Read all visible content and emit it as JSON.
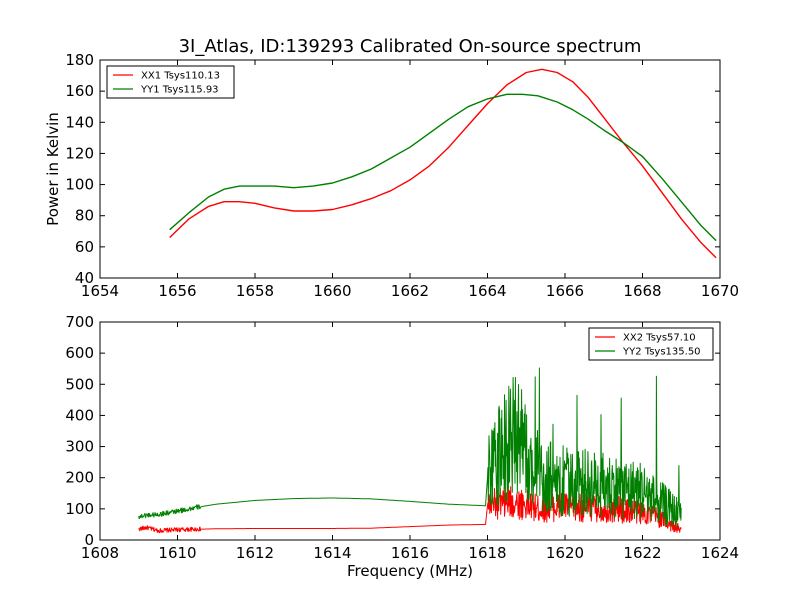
{
  "figure_title": "3I_Atlas, ID:139293 Calibrated On-source spectrum",
  "colors": {
    "red": "#ff0000",
    "green": "#008000"
  },
  "chart_data": [
    {
      "type": "line",
      "panel": "top",
      "title": "3I_Atlas, ID:139293 Calibrated On-source spectrum",
      "xlabel": "",
      "ylabel": "Power in Kelvin",
      "xlim": [
        1654,
        1670
      ],
      "ylim": [
        40,
        180
      ],
      "xticks": [
        1654,
        1656,
        1658,
        1660,
        1662,
        1664,
        1666,
        1668,
        1670
      ],
      "yticks": [
        40,
        60,
        80,
        100,
        120,
        140,
        160,
        180
      ],
      "legend_position": "top-left",
      "series": [
        {
          "name": "XX1 Tsys110.13",
          "color": "#ff0000",
          "x": [
            1655.8,
            1656.3,
            1656.8,
            1657.2,
            1657.6,
            1658.0,
            1658.5,
            1659.0,
            1659.5,
            1660.0,
            1660.5,
            1661.0,
            1661.5,
            1662.0,
            1662.5,
            1663.0,
            1663.5,
            1664.0,
            1664.5,
            1665.0,
            1665.4,
            1665.8,
            1666.2,
            1666.6,
            1667.0,
            1667.5,
            1668.0,
            1668.5,
            1669.0,
            1669.5,
            1669.9
          ],
          "y": [
            66,
            78,
            86,
            89,
            89,
            88,
            85,
            83,
            83,
            84,
            87,
            91,
            96,
            103,
            112,
            124,
            138,
            152,
            164,
            172,
            174,
            172,
            166,
            156,
            143,
            127,
            112,
            95,
            78,
            63,
            53
          ]
        },
        {
          "name": "YY1 Tsys115.93",
          "color": "#008000",
          "x": [
            1655.8,
            1656.3,
            1656.8,
            1657.2,
            1657.6,
            1658.0,
            1658.5,
            1659.0,
            1659.5,
            1660.0,
            1660.5,
            1661.0,
            1661.5,
            1662.0,
            1662.5,
            1663.0,
            1663.5,
            1664.0,
            1664.5,
            1664.9,
            1665.3,
            1665.8,
            1666.2,
            1666.6,
            1667.0,
            1667.5,
            1668.0,
            1668.5,
            1669.0,
            1669.5,
            1669.9
          ],
          "y": [
            71,
            82,
            92,
            97,
            99,
            99,
            99,
            98,
            99,
            101,
            105,
            110,
            117,
            124,
            133,
            142,
            150,
            155,
            158,
            158,
            157,
            153,
            148,
            142,
            135,
            127,
            118,
            104,
            89,
            74,
            64
          ]
        }
      ]
    },
    {
      "type": "line",
      "panel": "bottom",
      "title": "",
      "xlabel": "Frequency (MHz)",
      "ylabel": "",
      "xlim": [
        1608,
        1624
      ],
      "ylim": [
        0,
        700
      ],
      "xticks": [
        1608,
        1610,
        1612,
        1614,
        1616,
        1618,
        1620,
        1622,
        1624
      ],
      "yticks": [
        0,
        100,
        200,
        300,
        400,
        500,
        600,
        700
      ],
      "legend_position": "top-right",
      "series": [
        {
          "name": "XX2 Tsys57.10",
          "color": "#ff0000",
          "x": [
            1609.0,
            1609.2,
            1609.5,
            1610.0,
            1611.0,
            1612.0,
            1613.0,
            1614.0,
            1615.0,
            1616.0,
            1617.0,
            1617.95,
            1618.0,
            1618.2,
            1618.5,
            1618.8,
            1619.0,
            1619.3,
            1619.6,
            1620.0,
            1620.4,
            1620.8,
            1621.2,
            1621.6,
            1622.0,
            1622.3,
            1622.6,
            1623.0
          ],
          "y": [
            35,
            40,
            30,
            33,
            36,
            37,
            37,
            37,
            38,
            43,
            48,
            50,
            110,
            115,
            118,
            120,
            112,
            100,
            105,
            108,
            104,
            102,
            100,
            95,
            90,
            80,
            60,
            30
          ]
        },
        {
          "name": "YY2 Tsys135.50",
          "color": "#008000",
          "x": [
            1609.0,
            1609.2,
            1609.5,
            1610.0,
            1610.5,
            1611.0,
            1612.0,
            1613.0,
            1614.0,
            1615.0,
            1616.0,
            1617.0,
            1617.95,
            1618.0,
            1618.2,
            1618.5,
            1618.8,
            1619.0,
            1619.3,
            1619.6,
            1620.0,
            1620.4,
            1620.8,
            1621.2,
            1621.6,
            1622.0,
            1622.3,
            1622.6,
            1623.0
          ],
          "y": [
            75,
            80,
            82,
            92,
            105,
            115,
            127,
            133,
            135,
            132,
            124,
            115,
            110,
            200,
            260,
            300,
            350,
            260,
            220,
            200,
            190,
            185,
            180,
            175,
            165,
            160,
            130,
            110,
            80
          ]
        }
      ]
    }
  ]
}
